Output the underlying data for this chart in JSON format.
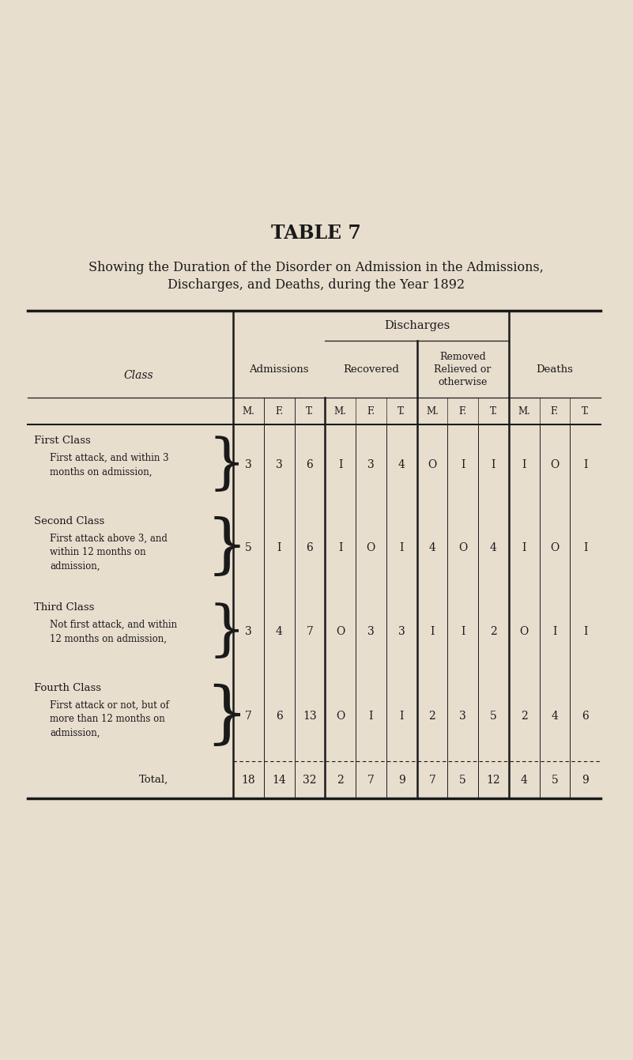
{
  "title": "TABLE 7",
  "subtitle1": "Showing the Duration of the Disorder on Admission in the Admissions,",
  "subtitle2": "Discharges, and Deaths, during the Year 1892",
  "bg_color": "#e8dece",
  "text_color": "#1a1a1a",
  "sub_headers": [
    "M.",
    "F.",
    "T.",
    "M.",
    "F.",
    "T.",
    "M.",
    "F.",
    "T.",
    "M.",
    "F.",
    "T."
  ],
  "rows": [
    {
      "class_name": "First Class",
      "class_desc": "First attack, and within 3\nmonths on admission,",
      "values": [
        "3",
        "3",
        "6",
        "I",
        "3",
        "4",
        "O",
        "I",
        "I",
        "I",
        "O",
        "I"
      ]
    },
    {
      "class_name": "Second Class",
      "class_desc": "First attack above 3, and\nwithin 12 months on\nadmission,",
      "values": [
        "5",
        "I",
        "6",
        "I",
        "O",
        "I",
        "4",
        "O",
        "4",
        "I",
        "O",
        "I"
      ]
    },
    {
      "class_name": "Third Class",
      "class_desc": "Not first attack, and within\n12 months on admission,",
      "values": [
        "3",
        "4",
        "7",
        "O",
        "3",
        "3",
        "I",
        "I",
        "2",
        "O",
        "I",
        "I"
      ]
    },
    {
      "class_name": "Fourth Class",
      "class_desc": "First attack or not, but of\nmore than 12 months on\nadmission,",
      "values": [
        "7",
        "6",
        "13",
        "O",
        "I",
        "I",
        "2",
        "3",
        "5",
        "2",
        "4",
        "6"
      ]
    }
  ],
  "total_label": "Total,",
  "totals": [
    "18",
    "14",
    "32",
    "2",
    "7",
    "9",
    "7",
    "5",
    "12",
    "4",
    "5",
    "9"
  ]
}
